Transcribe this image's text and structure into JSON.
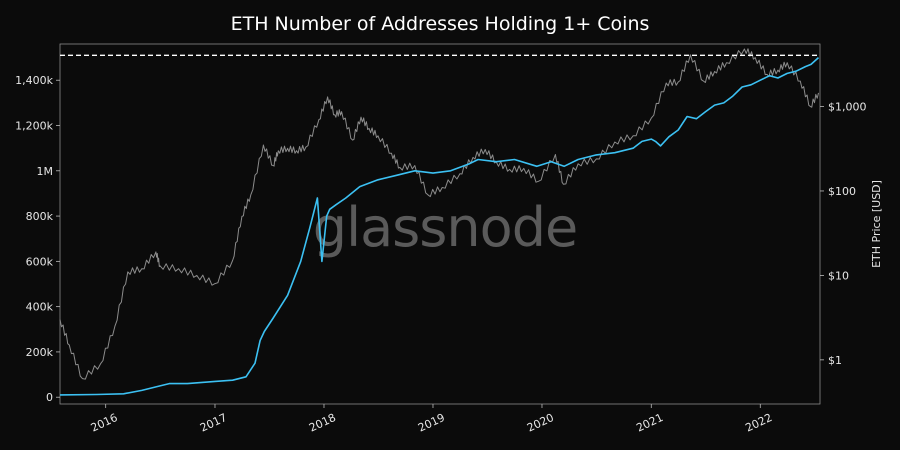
{
  "chart_data": {
    "type": "line",
    "title": "ETH Number of Addresses Holding 1+ Coins",
    "watermark": "glassnode",
    "xlabel": "",
    "ylabel": "",
    "y2label": "ETH Price [USD]",
    "grid": false,
    "x_range": [
      "2015-08-01",
      "2022-07-20"
    ],
    "ylim": [
      -30000,
      1560000
    ],
    "y2_scale": "log",
    "y2lim": [
      0.3,
      5500
    ],
    "x_ticks": [
      "2016",
      "2017",
      "2018",
      "2019",
      "2020",
      "2021",
      "2022"
    ],
    "x_tick_dates": [
      "2016-01-01",
      "2017-01-01",
      "2018-01-01",
      "2019-01-01",
      "2020-01-01",
      "2021-01-01",
      "2022-01-01"
    ],
    "y_ticks": [
      {
        "label": "0",
        "value": 0
      },
      {
        "label": "200k",
        "value": 200000
      },
      {
        "label": "400k",
        "value": 400000
      },
      {
        "label": "600k",
        "value": 600000
      },
      {
        "label": "800k",
        "value": 800000
      },
      {
        "label": "1M",
        "value": 1000000
      },
      {
        "label": "1,200k",
        "value": 1200000
      },
      {
        "label": "1,400k",
        "value": 1400000
      }
    ],
    "y2_ticks": [
      {
        "label": "$1",
        "value": 1
      },
      {
        "label": "$10",
        "value": 10
      },
      {
        "label": "$100",
        "value": 100
      },
      {
        "label": "$1,000",
        "value": 1000
      }
    ],
    "reference_line": {
      "value": 1510000,
      "style": "dashed",
      "color": "#ffffff"
    },
    "series": [
      {
        "axis": "left",
        "color": "#3cc1f3",
        "x": [
          "2015-08-01",
          "2015-12-01",
          "2016-03-01",
          "2016-05-01",
          "2016-07-01",
          "2016-08-01",
          "2016-10-01",
          "2017-01-01",
          "2017-03-01",
          "2017-04-15",
          "2017-05-15",
          "2017-06-01",
          "2017-06-15",
          "2017-07-15",
          "2017-09-01",
          "2017-10-15",
          "2017-11-15",
          "2017-12-10",
          "2017-12-25",
          "2018-01-10",
          "2018-01-20",
          "2018-02-10",
          "2018-03-15",
          "2018-05-01",
          "2018-07-01",
          "2018-09-01",
          "2018-11-01",
          "2019-01-01",
          "2019-03-01",
          "2019-05-01",
          "2019-06-01",
          "2019-08-01",
          "2019-10-01",
          "2019-12-15",
          "2020-02-01",
          "2020-03-15",
          "2020-05-01",
          "2020-07-01",
          "2020-09-01",
          "2020-11-01",
          "2020-12-01",
          "2021-01-01",
          "2021-01-15",
          "2021-02-01",
          "2021-03-01",
          "2021-04-01",
          "2021-05-01",
          "2021-06-01",
          "2021-07-01",
          "2021-08-01",
          "2021-09-01",
          "2021-10-01",
          "2021-11-01",
          "2021-12-01",
          "2022-01-01",
          "2022-02-01",
          "2022-03-01",
          "2022-04-01",
          "2022-05-01",
          "2022-06-01",
          "2022-06-20",
          "2022-07-15"
        ],
        "values": [
          10000,
          12000,
          15000,
          30000,
          50000,
          60000,
          60000,
          70000,
          75000,
          90000,
          150000,
          250000,
          290000,
          350000,
          450000,
          600000,
          750000,
          880000,
          600000,
          800000,
          830000,
          850000,
          880000,
          930000,
          960000,
          980000,
          1000000,
          990000,
          1000000,
          1030000,
          1050000,
          1040000,
          1050000,
          1020000,
          1040000,
          1020000,
          1050000,
          1070000,
          1080000,
          1100000,
          1130000,
          1140000,
          1130000,
          1110000,
          1150000,
          1180000,
          1240000,
          1230000,
          1260000,
          1290000,
          1300000,
          1330000,
          1370000,
          1380000,
          1400000,
          1420000,
          1410000,
          1430000,
          1440000,
          1460000,
          1470000,
          1500000
        ]
      },
      {
        "axis": "right",
        "color": "#8c8c8c",
        "x": [
          "2015-08-01",
          "2015-09-01",
          "2015-10-15",
          "2015-12-15",
          "2016-02-01",
          "2016-03-15",
          "2016-05-01",
          "2016-06-17",
          "2016-07-01",
          "2016-09-01",
          "2016-11-01",
          "2017-01-01",
          "2017-03-01",
          "2017-04-01",
          "2017-05-01",
          "2017-06-12",
          "2017-07-15",
          "2017-08-01",
          "2017-09-01",
          "2017-10-01",
          "2017-11-01",
          "2017-12-15",
          "2018-01-13",
          "2018-02-06",
          "2018-03-01",
          "2018-04-07",
          "2018-05-05",
          "2018-06-01",
          "2018-07-01",
          "2018-08-15",
          "2018-09-12",
          "2018-11-01",
          "2018-12-15",
          "2019-02-01",
          "2019-04-01",
          "2019-05-15",
          "2019-06-25",
          "2019-08-01",
          "2019-09-15",
          "2019-11-01",
          "2019-12-20",
          "2020-02-15",
          "2020-03-13",
          "2020-05-01",
          "2020-07-01",
          "2020-09-01",
          "2020-11-01",
          "2021-01-01",
          "2021-02-20",
          "2021-04-01",
          "2021-05-12",
          "2021-06-25",
          "2021-08-01",
          "2021-09-10",
          "2021-11-09",
          "2021-12-15",
          "2022-01-24",
          "2022-03-01",
          "2022-04-01",
          "2022-05-15",
          "2022-06-18",
          "2022-07-15"
        ],
        "values": [
          3,
          1.5,
          0.6,
          0.9,
          2.5,
          11,
          12,
          19,
          13,
          12,
          10,
          8,
          15,
          50,
          90,
          350,
          200,
          300,
          320,
          300,
          330,
          700,
          1300,
          800,
          870,
          400,
          750,
          550,
          450,
          280,
          190,
          200,
          90,
          110,
          160,
          250,
          310,
          220,
          180,
          185,
          130,
          270,
          120,
          210,
          240,
          380,
          450,
          730,
          1900,
          1950,
          4100,
          2000,
          2600,
          3300,
          4800,
          3800,
          2400,
          2700,
          3300,
          2000,
          1000,
          1450
        ]
      }
    ]
  }
}
